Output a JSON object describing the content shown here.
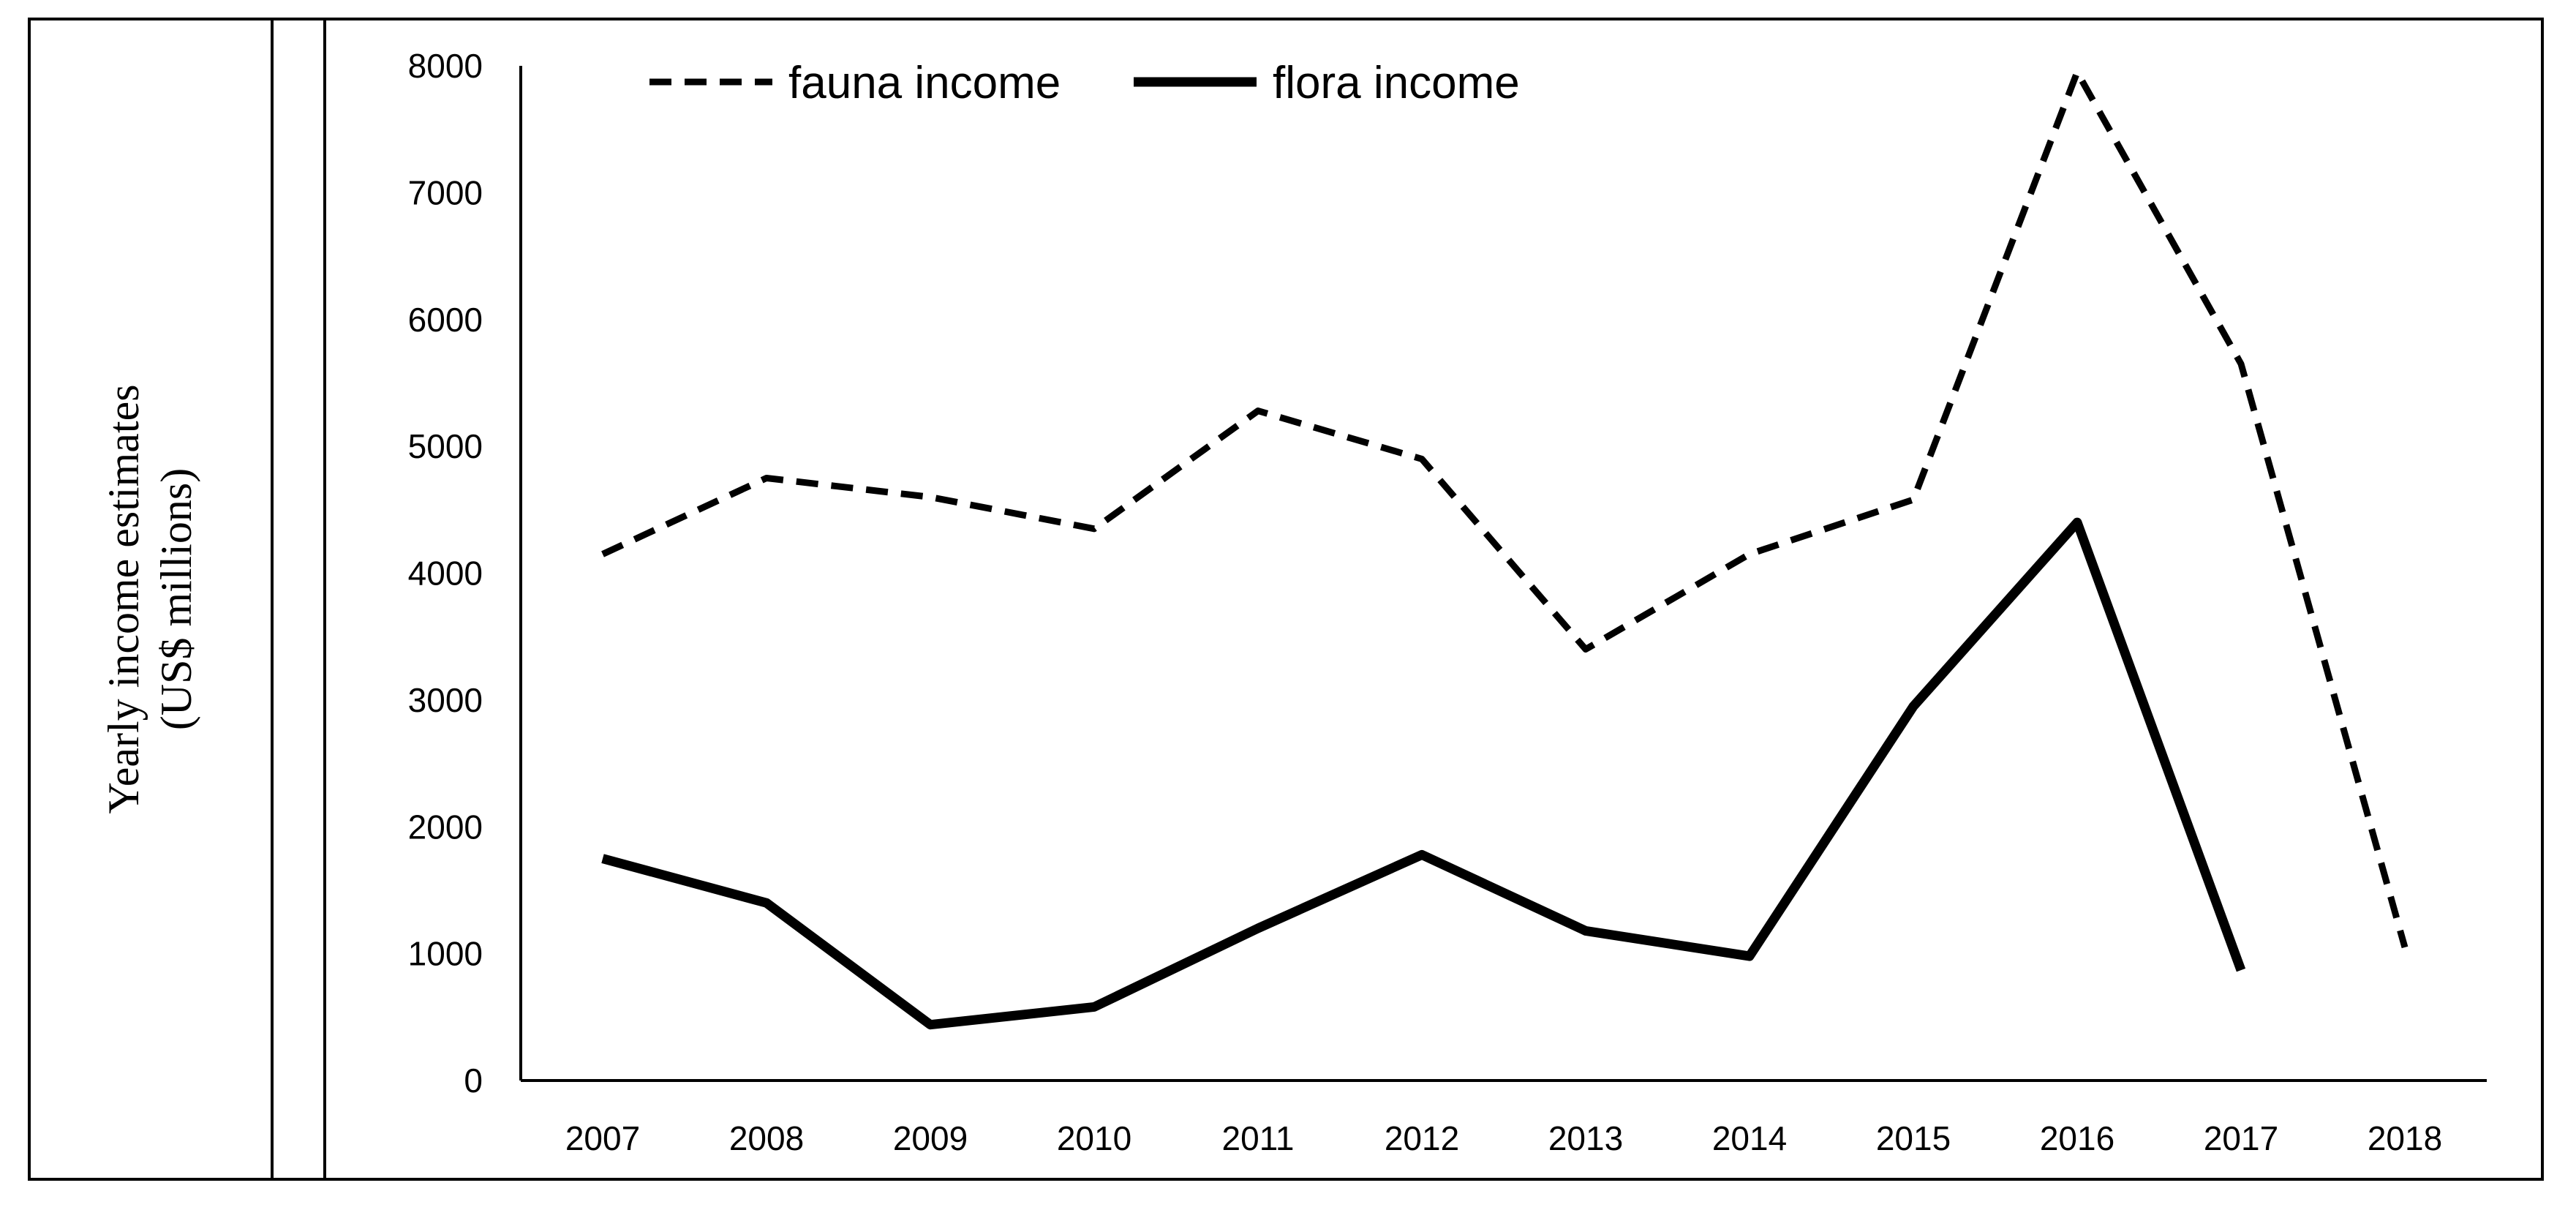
{
  "chart_data": {
    "type": "line",
    "ylabel_line1": "Yearly income estimates",
    "ylabel_line2": "(US$ millions)",
    "categories": [
      "2007",
      "2008",
      "2009",
      "2010",
      "2011",
      "2012",
      "2013",
      "2014",
      "2015",
      "2016",
      "2017",
      "2018"
    ],
    "ylim": [
      0,
      8000
    ],
    "yticks": [
      0,
      1000,
      2000,
      3000,
      4000,
      5000,
      6000,
      7000,
      8000
    ],
    "series": [
      {
        "name": "fauna income",
        "style": "dashed",
        "values": [
          4150,
          4750,
          4600,
          4350,
          5280,
          4900,
          3400,
          4150,
          4580,
          7950,
          5650,
          1050
        ]
      },
      {
        "name": "flora income",
        "style": "solid",
        "values": [
          1750,
          1400,
          440,
          580,
          1200,
          1780,
          1180,
          980,
          2950,
          4400,
          870,
          null
        ]
      }
    ],
    "legend_position": "top-left",
    "grid": false,
    "colors": {
      "line": "#000000",
      "background": "#ffffff"
    }
  }
}
